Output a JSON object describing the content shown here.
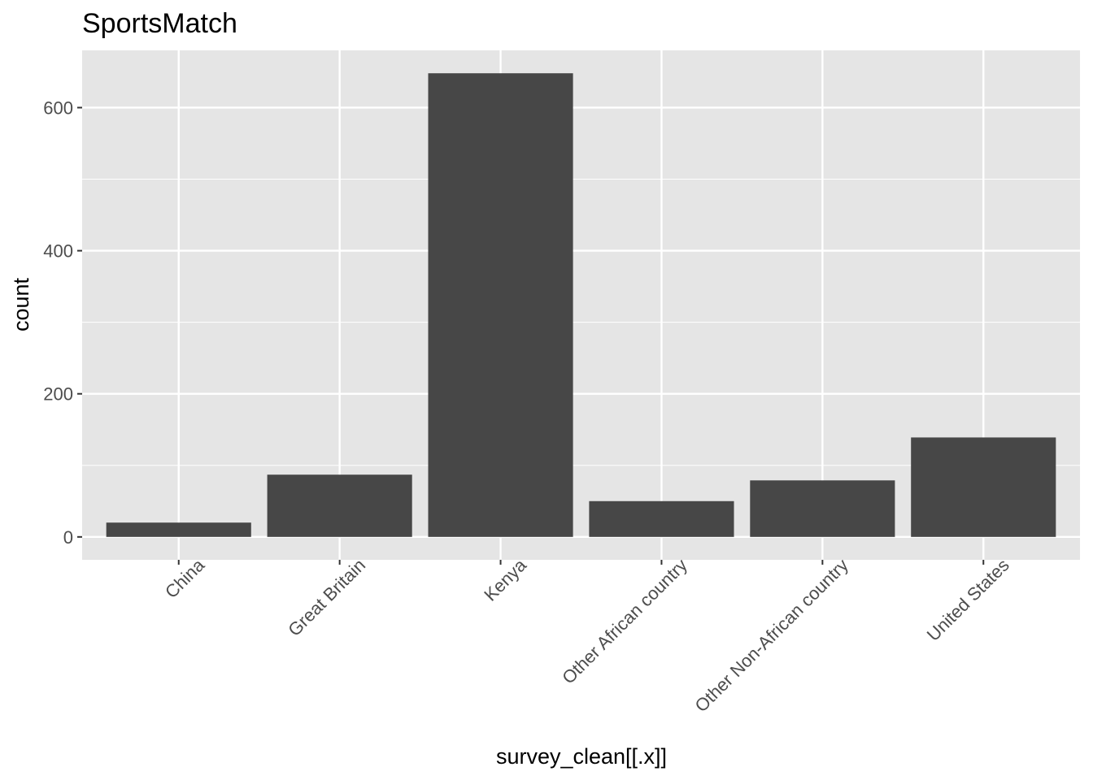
{
  "chart_data": {
    "type": "bar",
    "title": "SportsMatch",
    "xlabel": "survey_clean[[.x]]",
    "ylabel": "count",
    "categories": [
      "China",
      "Great Britain",
      "Kenya",
      "Other African country",
      "Other Non-African country",
      "United States"
    ],
    "values": [
      20,
      87,
      648,
      50,
      79,
      139
    ],
    "ylim": [
      -32,
      680
    ],
    "yticks": [
      0,
      200,
      400,
      600
    ],
    "ytick_labels": [
      "0",
      "200",
      "400",
      "600"
    ],
    "grid": true,
    "legend": "none",
    "colors": {
      "bar": "#474747",
      "panel": "#e5e5e5",
      "grid": "#ffffff",
      "tick": "#333333",
      "tick_text": "#4d4d4d"
    }
  }
}
